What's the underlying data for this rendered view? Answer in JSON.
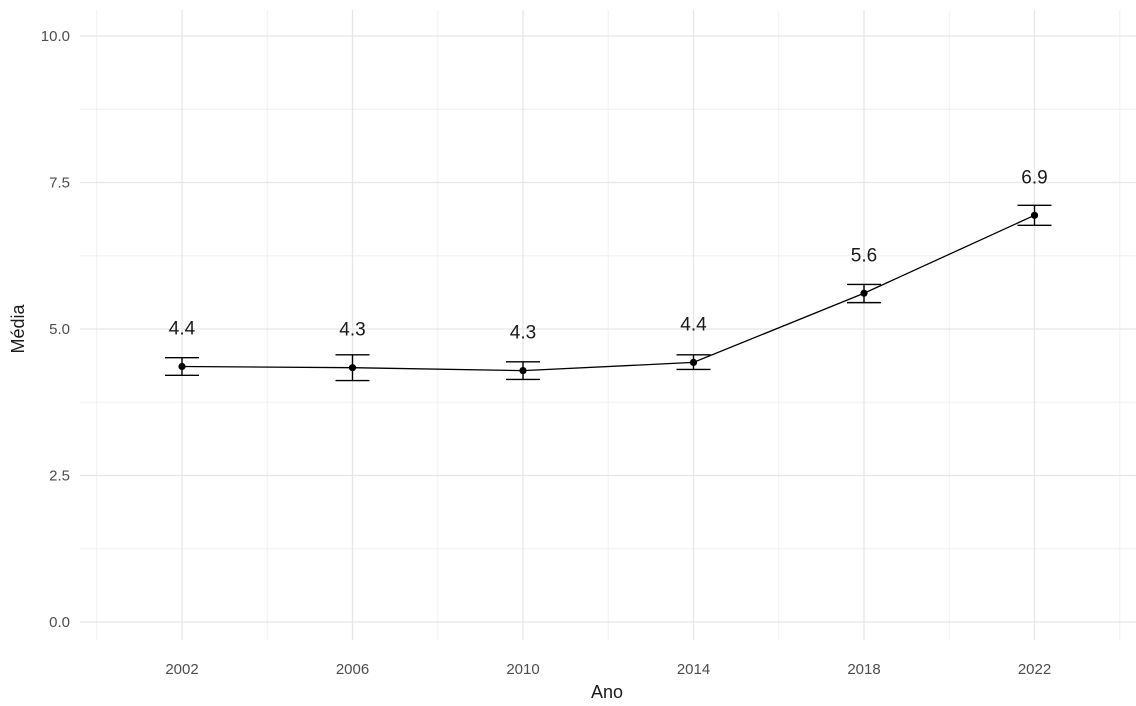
{
  "chart_data": {
    "type": "line",
    "title": "",
    "xlabel": "Ano",
    "ylabel": "Média",
    "x": [
      "2002",
      "2006",
      "2010",
      "2014",
      "2018",
      "2022"
    ],
    "series": [
      {
        "values": [
          4.36,
          4.34,
          4.29,
          4.43,
          5.61,
          6.94
        ],
        "error_lower": [
          4.21,
          4.12,
          4.14,
          4.31,
          5.45,
          6.77
        ],
        "error_upper": [
          4.51,
          4.56,
          4.44,
          4.56,
          5.76,
          7.11
        ],
        "labels": [
          "4.4",
          "4.3",
          "4.3",
          "4.4",
          "5.6",
          "6.9"
        ]
      }
    ],
    "ylim": [
      0,
      10
    ],
    "yticks": [
      "0.0",
      "2.5",
      "5.0",
      "7.5",
      "10.0"
    ],
    "grid": true,
    "legend": "none"
  }
}
